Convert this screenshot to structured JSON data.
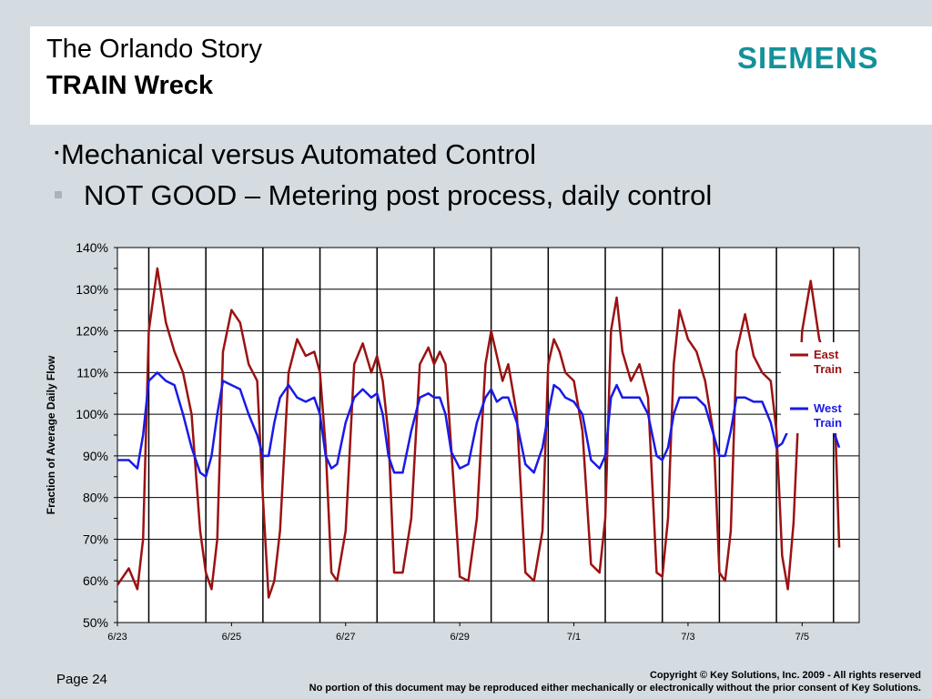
{
  "header": {
    "title_line1": "The Orlando Story",
    "title_line2": "TRAIN Wreck",
    "logo_text": "SIEMENS"
  },
  "bullets": [
    {
      "marker": "▪",
      "text": "Mechanical versus Automated Control"
    },
    {
      "text": "NOT GOOD  –  Metering post process, daily control"
    }
  ],
  "footer": {
    "page": "Page 24",
    "copyright_line1": "Copyright © Key Solutions, Inc. 2009  -  All rights reserved",
    "copyright_line2": "No portion of this document may be reproduced either mechanically or electronically without the prior consent of Key Solutions."
  },
  "colors": {
    "east": "#9b1212",
    "west": "#1a1ae6",
    "logo": "#14919b"
  },
  "chart_data": {
    "type": "line",
    "ylabel": "Fraction of Average Daily Flow",
    "xlabel": "",
    "ylim": [
      50,
      140
    ],
    "yticks": [
      "50%",
      "60%",
      "70%",
      "80%",
      "90%",
      "100%",
      "110%",
      "120%",
      "130%",
      "140%"
    ],
    "xticks": [
      "6/23",
      "6/25",
      "6/27",
      "6/29",
      "7/1",
      "7/3",
      "7/5"
    ],
    "xlim": [
      0,
      13
    ],
    "grid": true,
    "legend": "right",
    "series": [
      {
        "name": "East Train",
        "x": [
          0,
          0.2,
          0.35,
          0.45,
          0.55,
          0.7,
          0.85,
          1.0,
          1.15,
          1.3,
          1.45,
          1.55,
          1.65,
          1.75,
          1.85,
          2.0,
          2.15,
          2.3,
          2.45,
          2.55,
          2.65,
          2.75,
          2.85,
          3.0,
          3.15,
          3.3,
          3.45,
          3.55,
          3.65,
          3.75,
          3.85,
          4.0,
          4.15,
          4.3,
          4.45,
          4.55,
          4.65,
          4.75,
          4.85,
          5.0,
          5.15,
          5.3,
          5.45,
          5.55,
          5.65,
          5.75,
          5.85,
          6.0,
          6.15,
          6.3,
          6.45,
          6.55,
          6.65,
          6.75,
          6.85,
          7.0,
          7.15,
          7.3,
          7.45,
          7.55,
          7.65,
          7.75,
          7.85,
          8.0,
          8.15,
          8.3,
          8.45,
          8.55,
          8.65,
          8.75,
          8.85,
          9.0,
          9.15,
          9.3,
          9.45,
          9.55,
          9.65,
          9.75,
          9.85,
          10.0,
          10.15,
          10.3,
          10.45,
          10.55,
          10.65,
          10.75,
          10.85,
          11.0,
          11.15,
          11.3,
          11.45,
          11.55,
          11.65,
          11.75,
          11.85,
          12.0,
          12.15,
          12.3,
          12.45,
          12.55,
          12.65
        ],
        "y": [
          59,
          63,
          58,
          70,
          120,
          135,
          122,
          115,
          110,
          100,
          72,
          62,
          58,
          70,
          115,
          125,
          122,
          112,
          108,
          80,
          56,
          60,
          72,
          110,
          118,
          114,
          115,
          110,
          92,
          62,
          60,
          72,
          112,
          117,
          110,
          114,
          108,
          95,
          62,
          62,
          75,
          112,
          116,
          112,
          115,
          112,
          92,
          61,
          60,
          75,
          112,
          120,
          114,
          108,
          112,
          100,
          62,
          60,
          72,
          112,
          118,
          115,
          110,
          108,
          96,
          64,
          62,
          75,
          120,
          128,
          115,
          108,
          112,
          104,
          62,
          61,
          75,
          112,
          125,
          118,
          115,
          108,
          95,
          62,
          60,
          72,
          115,
          124,
          114,
          110,
          108,
          96,
          66,
          58,
          74,
          120,
          132,
          118,
          112,
          110,
          68
        ]
      },
      {
        "name": "West Train",
        "x": [
          0,
          0.2,
          0.35,
          0.45,
          0.55,
          0.7,
          0.85,
          1.0,
          1.15,
          1.3,
          1.45,
          1.55,
          1.65,
          1.75,
          1.85,
          2.0,
          2.15,
          2.3,
          2.45,
          2.55,
          2.65,
          2.75,
          2.85,
          3.0,
          3.15,
          3.3,
          3.45,
          3.55,
          3.65,
          3.75,
          3.85,
          4.0,
          4.15,
          4.3,
          4.45,
          4.55,
          4.65,
          4.75,
          4.85,
          5.0,
          5.15,
          5.3,
          5.45,
          5.55,
          5.65,
          5.75,
          5.85,
          6.0,
          6.15,
          6.3,
          6.45,
          6.55,
          6.65,
          6.75,
          6.85,
          7.0,
          7.15,
          7.3,
          7.45,
          7.55,
          7.65,
          7.75,
          7.85,
          8.0,
          8.15,
          8.3,
          8.45,
          8.55,
          8.65,
          8.75,
          8.85,
          9.0,
          9.15,
          9.3,
          9.45,
          9.55,
          9.65,
          9.75,
          9.85,
          10.0,
          10.15,
          10.3,
          10.45,
          10.55,
          10.65,
          10.75,
          10.85,
          11.0,
          11.15,
          11.3,
          11.45,
          11.55,
          11.65,
          11.75,
          11.85,
          12.0,
          12.15,
          12.3,
          12.45,
          12.55,
          12.65
        ],
        "y": [
          89,
          89,
          87,
          95,
          108,
          110,
          108,
          107,
          100,
          92,
          86,
          85,
          90,
          100,
          108,
          107,
          106,
          100,
          95,
          90,
          90,
          98,
          104,
          107,
          104,
          103,
          104,
          100,
          90,
          87,
          88,
          98,
          104,
          106,
          104,
          105,
          100,
          90,
          86,
          86,
          96,
          104,
          105,
          104,
          104,
          100,
          91,
          87,
          88,
          98,
          104,
          106,
          103,
          104,
          104,
          98,
          88,
          86,
          92,
          100,
          107,
          106,
          104,
          103,
          100,
          89,
          87,
          90,
          104,
          107,
          104,
          104,
          104,
          100,
          90,
          89,
          92,
          100,
          104,
          104,
          104,
          102,
          95,
          90,
          90,
          96,
          104,
          104,
          103,
          103,
          98,
          92,
          93,
          96,
          104,
          106,
          104,
          102,
          100,
          96,
          92
        ]
      }
    ]
  }
}
